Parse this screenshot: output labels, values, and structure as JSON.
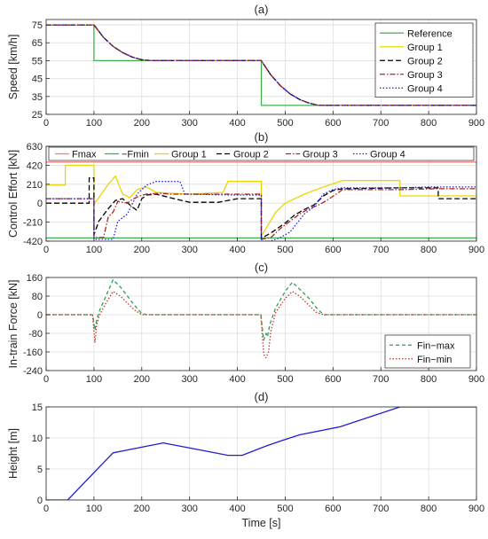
{
  "chart_data": [
    {
      "type": "line",
      "title": "(a)",
      "xlabel": "",
      "ylabel": "Speed [km/h]",
      "xlim": [
        0,
        900
      ],
      "ylim": [
        25,
        78
      ],
      "xticks": [
        0,
        100,
        200,
        300,
        400,
        500,
        600,
        700,
        800,
        900
      ],
      "yticks": [
        25,
        35,
        45,
        55,
        65,
        75
      ],
      "grid": true,
      "legend": "top-right",
      "series": [
        {
          "name": "Reference",
          "color": "#3cb44b",
          "dash": "solid",
          "x": [
            0,
            100,
            100,
            450,
            450,
            900
          ],
          "y": [
            75,
            75,
            55,
            55,
            30,
            30
          ]
        },
        {
          "name": "Group 1",
          "color": "#e8d800",
          "dash": "solid",
          "x": [
            0,
            100,
            120,
            140,
            160,
            180,
            200,
            220,
            450,
            470,
            490,
            510,
            530,
            550,
            570,
            900
          ],
          "y": [
            75,
            75,
            68,
            63,
            59.5,
            57,
            55.5,
            55,
            55,
            47,
            41,
            36.5,
            33.3,
            31.3,
            30,
            30
          ]
        },
        {
          "name": "Group 2",
          "color": "#000000",
          "dash": "6 3",
          "x": [
            0,
            100,
            120,
            140,
            160,
            180,
            200,
            220,
            450,
            470,
            490,
            510,
            530,
            550,
            570,
            900
          ],
          "y": [
            75,
            75,
            68,
            63,
            59.5,
            57,
            55.5,
            55,
            55,
            47,
            41,
            36.5,
            33.3,
            31.3,
            30,
            30
          ]
        },
        {
          "name": "Group 3",
          "color": "#b22222",
          "dash": "6 2 1.5 2",
          "x": [
            0,
            100,
            120,
            140,
            160,
            180,
            200,
            220,
            450,
            470,
            490,
            510,
            530,
            550,
            570,
            900
          ],
          "y": [
            75,
            75,
            68,
            63,
            59.5,
            57,
            55.5,
            55,
            55,
            47,
            41,
            36.5,
            33.3,
            31.3,
            30,
            30
          ]
        },
        {
          "name": "Group 4",
          "color": "#1f1fdd",
          "dash": "1.5 2",
          "x": [
            0,
            100,
            120,
            140,
            160,
            180,
            200,
            220,
            450,
            470,
            490,
            510,
            530,
            550,
            570,
            900
          ],
          "y": [
            75,
            75,
            68,
            63,
            59.5,
            57,
            55.5,
            55,
            55,
            47,
            41,
            36.5,
            33.3,
            31.3,
            30,
            30
          ]
        }
      ]
    },
    {
      "type": "line",
      "title": "(b)",
      "xlabel": "",
      "ylabel": "Control Effort [kN]",
      "xlim": [
        0,
        900
      ],
      "ylim": [
        -420,
        630
      ],
      "xticks": [
        0,
        100,
        200,
        300,
        400,
        500,
        600,
        700,
        800,
        900
      ],
      "yticks": [
        -420,
        -210,
        0,
        210,
        420,
        630
      ],
      "grid": true,
      "legend": "top",
      "series": [
        {
          "name": "Fmax",
          "color": "#f08080",
          "dash": "solid",
          "x": [
            0,
            900
          ],
          "y": [
            455,
            455
          ]
        },
        {
          "name": "−Fmin",
          "color": "#3cb44b",
          "dash": "solid",
          "x": [
            0,
            900
          ],
          "y": [
            -385,
            -385
          ]
        },
        {
          "name": "Group 1",
          "color": "#e8d800",
          "dash": "solid",
          "x": [
            0,
            40,
            40,
            100,
            100,
            110,
            130,
            145,
            160,
            165,
            175,
            190,
            210,
            230,
            260,
            300,
            370,
            380,
            420,
            420,
            450,
            450,
            460,
            480,
            500,
            520,
            540,
            560,
            580,
            620,
            740,
            740,
            900
          ],
          "y": [
            200,
            200,
            420,
            420,
            -10,
            60,
            210,
            300,
            100,
            90,
            60,
            150,
            180,
            120,
            110,
            100,
            120,
            240,
            240,
            240,
            240,
            -360,
            -280,
            -100,
            0,
            50,
            100,
            140,
            180,
            250,
            250,
            80,
            80
          ]
        },
        {
          "name": "Group 2",
          "color": "#000000",
          "dash": "6 3",
          "x": [
            0,
            90,
            90,
            100,
            100,
            110,
            130,
            145,
            160,
            180,
            190,
            200,
            210,
            230,
            260,
            300,
            360,
            400,
            450,
            450,
            470,
            500,
            520,
            540,
            560,
            580,
            600,
            620,
            740,
            820,
            820,
            900
          ],
          "y": [
            0,
            0,
            280,
            280,
            -350,
            -200,
            -60,
            30,
            50,
            -40,
            -80,
            50,
            90,
            100,
            60,
            10,
            10,
            50,
            50,
            -390,
            -330,
            -220,
            -130,
            -70,
            -20,
            80,
            140,
            160,
            170,
            170,
            50,
            50
          ]
        },
        {
          "name": "Group 3",
          "color": "#b22222",
          "dash": "6 2 1.5 2",
          "x": [
            0,
            100,
            100,
            120,
            130,
            140,
            150,
            170,
            180,
            195,
            210,
            240,
            260,
            300,
            360,
            400,
            450,
            450,
            470,
            490,
            510,
            530,
            550,
            570,
            590,
            620,
            740,
            820,
            840,
            900
          ],
          "y": [
            50,
            50,
            -380,
            -380,
            -150,
            -100,
            20,
            0,
            40,
            80,
            100,
            110,
            100,
            100,
            100,
            100,
            100,
            -400,
            -380,
            -280,
            -200,
            -120,
            -60,
            -20,
            40,
            150,
            150,
            160,
            160,
            160
          ]
        },
        {
          "name": "Group 4",
          "color": "#1f1fdd",
          "dash": "1.5 2",
          "x": [
            0,
            100,
            100,
            140,
            150,
            170,
            190,
            210,
            230,
            280,
            290,
            400,
            450,
            450,
            470,
            490,
            510,
            540,
            560,
            580,
            600,
            620,
            740,
            800,
            900
          ],
          "y": [
            50,
            50,
            -400,
            -400,
            -200,
            -120,
            100,
            200,
            240,
            240,
            100,
            90,
            90,
            -420,
            -420,
            -380,
            -320,
            -120,
            -40,
            100,
            150,
            170,
            170,
            180,
            180
          ]
        }
      ]
    },
    {
      "type": "line",
      "title": "(c)",
      "xlabel": "",
      "ylabel": "In-train Force [kN]",
      "xlim": [
        0,
        900
      ],
      "ylim": [
        -240,
        160
      ],
      "xticks": [
        0,
        100,
        200,
        300,
        400,
        500,
        600,
        700,
        800,
        900
      ],
      "yticks": [
        -240,
        -160,
        -80,
        0,
        80,
        160
      ],
      "grid": true,
      "legend": "bottom-right",
      "series": [
        {
          "name": "Fin−max",
          "color": "#2e9e55",
          "dash": "4 3",
          "x": [
            0,
            97,
            102,
            106,
            112,
            125,
            140,
            155,
            170,
            185,
            200,
            210,
            300,
            449,
            455,
            460,
            463,
            468,
            480,
            500,
            515,
            530,
            550,
            565,
            580,
            900
          ],
          "y": [
            0,
            0,
            -65,
            -20,
            20,
            80,
            150,
            120,
            80,
            40,
            5,
            0,
            0,
            0,
            -110,
            -80,
            -95,
            -40,
            30,
            100,
            140,
            110,
            70,
            30,
            0,
            0
          ]
        },
        {
          "name": "Fin−min",
          "color": "#c0392b",
          "dash": "1.5 2",
          "x": [
            0,
            97,
            102,
            106,
            112,
            125,
            140,
            155,
            170,
            185,
            200,
            210,
            300,
            449,
            455,
            460,
            465,
            470,
            480,
            500,
            515,
            530,
            550,
            565,
            580,
            900
          ],
          "y": [
            0,
            0,
            -120,
            -40,
            0,
            50,
            100,
            80,
            50,
            20,
            0,
            0,
            0,
            0,
            -170,
            -185,
            -160,
            -70,
            10,
            70,
            100,
            80,
            40,
            10,
            0,
            0
          ]
        }
      ]
    },
    {
      "type": "line",
      "title": "(d)",
      "xlabel": "Time [s]",
      "ylabel": "Height [m]",
      "xlim": [
        0,
        900
      ],
      "ylim": [
        0,
        15
      ],
      "xticks": [
        0,
        100,
        200,
        300,
        400,
        500,
        600,
        700,
        800,
        900
      ],
      "yticks": [
        0,
        5,
        10,
        15
      ],
      "grid": true,
      "legend": "none",
      "series": [
        {
          "name": "",
          "color": "#1f1fd0",
          "dash": "solid",
          "x": [
            0,
            45,
            140,
            245,
            380,
            410,
            460,
            490,
            530,
            615,
            740,
            900
          ],
          "y": [
            0,
            0,
            7.6,
            9.2,
            7.2,
            7.2,
            8.7,
            9.5,
            10.5,
            11.8,
            15,
            15
          ]
        }
      ]
    }
  ]
}
